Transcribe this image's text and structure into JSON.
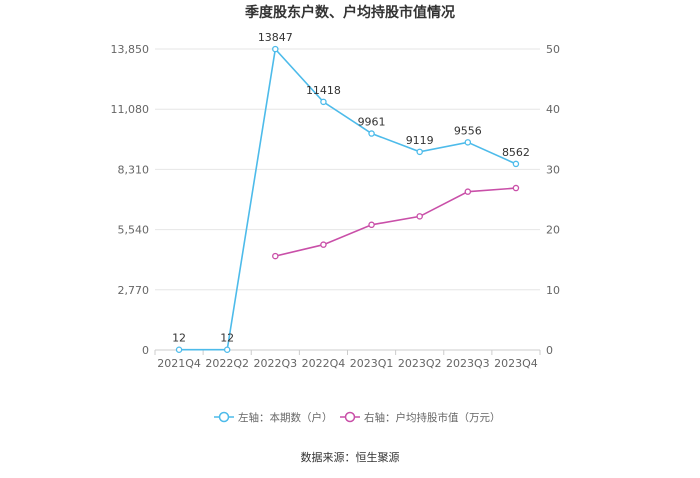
{
  "chart_data": {
    "type": "line",
    "title": "季度股东户数、户均持股市值情况",
    "categories": [
      "2021Q4",
      "2022Q2",
      "2022Q3",
      "2022Q4",
      "2023Q1",
      "2023Q2",
      "2023Q3",
      "2023Q4"
    ],
    "left_axis": {
      "ticks": [
        "0",
        "2,770",
        "5,540",
        "8,310",
        "11,080",
        "13,850"
      ],
      "ylim": [
        0,
        13850
      ]
    },
    "right_axis": {
      "ticks": [
        "0",
        "10",
        "20",
        "30",
        "40",
        "50"
      ],
      "ylim": [
        0,
        50
      ]
    },
    "series": [
      {
        "name": "左轴：本期数（户）",
        "axis": "left",
        "color": "#4dbbea",
        "values": [
          12,
          12,
          13847,
          11418,
          9961,
          9119,
          9556,
          8562
        ],
        "labels": [
          "12",
          "12",
          "13847",
          "11418",
          "9961",
          "9119",
          "9556",
          "8562"
        ]
      },
      {
        "name": "右轴：户均持股市值（万元）",
        "axis": "right",
        "color": "#c94fa8",
        "values": [
          null,
          null,
          15.6,
          17.5,
          20.8,
          22.2,
          26.3,
          26.9
        ]
      }
    ],
    "grid": true,
    "legend_position": "bottom"
  },
  "source": "数据来源：恒生聚源"
}
